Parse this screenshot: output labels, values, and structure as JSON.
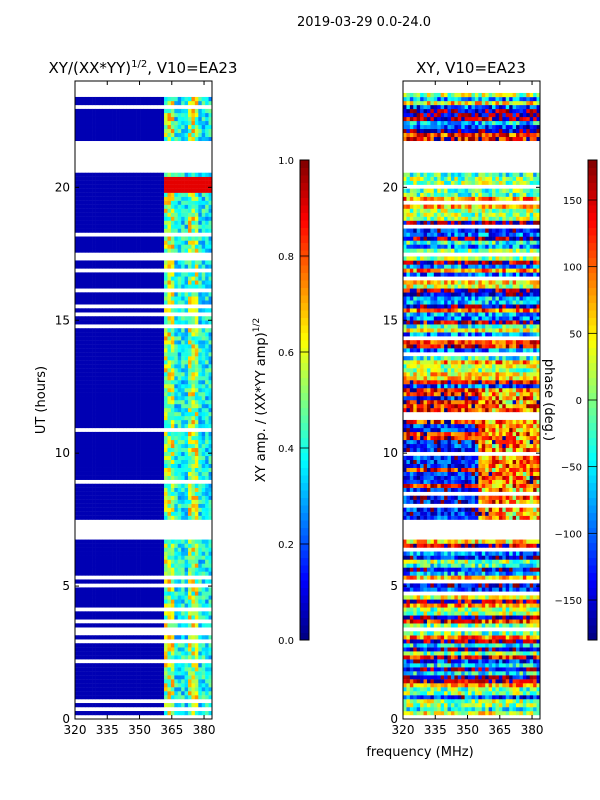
{
  "suptitle": "2019-03-29 0.0-24.0",
  "shared_xlabel": "frequency (MHz)",
  "chart_data": [
    {
      "type": "heatmap",
      "title": "XY/(XX*YY)^1/2, V10=EA23",
      "title_main": "XY/(XX*YY)",
      "title_sup": "1/2",
      "title_tail": ", V10=EA23",
      "xlabel": "frequency (MHz)",
      "ylabel": "UT (hours)",
      "xlim": [
        320,
        383.7
      ],
      "ylim": [
        0,
        24
      ],
      "xticks": [
        320,
        335,
        350,
        365,
        380
      ],
      "yticks": [
        0,
        5,
        10,
        15,
        20
      ],
      "colorbar": {
        "label": "XY amp. / (XX*YY amp)^1/2",
        "label_main": "XY amp. / (XX*YY amp)",
        "label_sup": "1/2",
        "range": [
          0,
          1
        ],
        "ticks": [
          "0.0",
          "0.2",
          "0.4",
          "0.6",
          "0.8",
          "1.0"
        ],
        "tick_values": [
          0,
          0.2,
          0.4,
          0.6,
          0.8,
          1.0
        ]
      },
      "colormap": "jet",
      "description_values": {
        "background_below_MHz": 361,
        "background_value": 0.05,
        "band_values_range": [
          0.3,
          0.95
        ]
      },
      "gaps_hours": [
        [
          20.6,
          21.7
        ],
        [
          6.7,
          7.45
        ],
        [
          23.55,
          24
        ]
      ]
    },
    {
      "type": "heatmap",
      "title": "XY, V10=EA23",
      "xlabel": "frequency (MHz)",
      "ylabel": "",
      "xlim": [
        320,
        383.7
      ],
      "ylim": [
        0,
        24
      ],
      "xticks": [
        320,
        335,
        350,
        365,
        380
      ],
      "yticks": [
        0,
        5,
        10,
        15,
        20
      ],
      "colorbar": {
        "label": "phase (deg.)",
        "range": [
          -180,
          180
        ],
        "ticks": [
          "-150",
          "-100",
          "-50",
          "0",
          "50",
          "100",
          "150"
        ],
        "tick_values": [
          -150,
          -100,
          -50,
          0,
          50,
          100,
          150
        ]
      },
      "colormap": "jet",
      "gaps_hours": [
        [
          20.6,
          21.7
        ],
        [
          6.7,
          7.45
        ],
        [
          23.55,
          24
        ]
      ]
    }
  ]
}
